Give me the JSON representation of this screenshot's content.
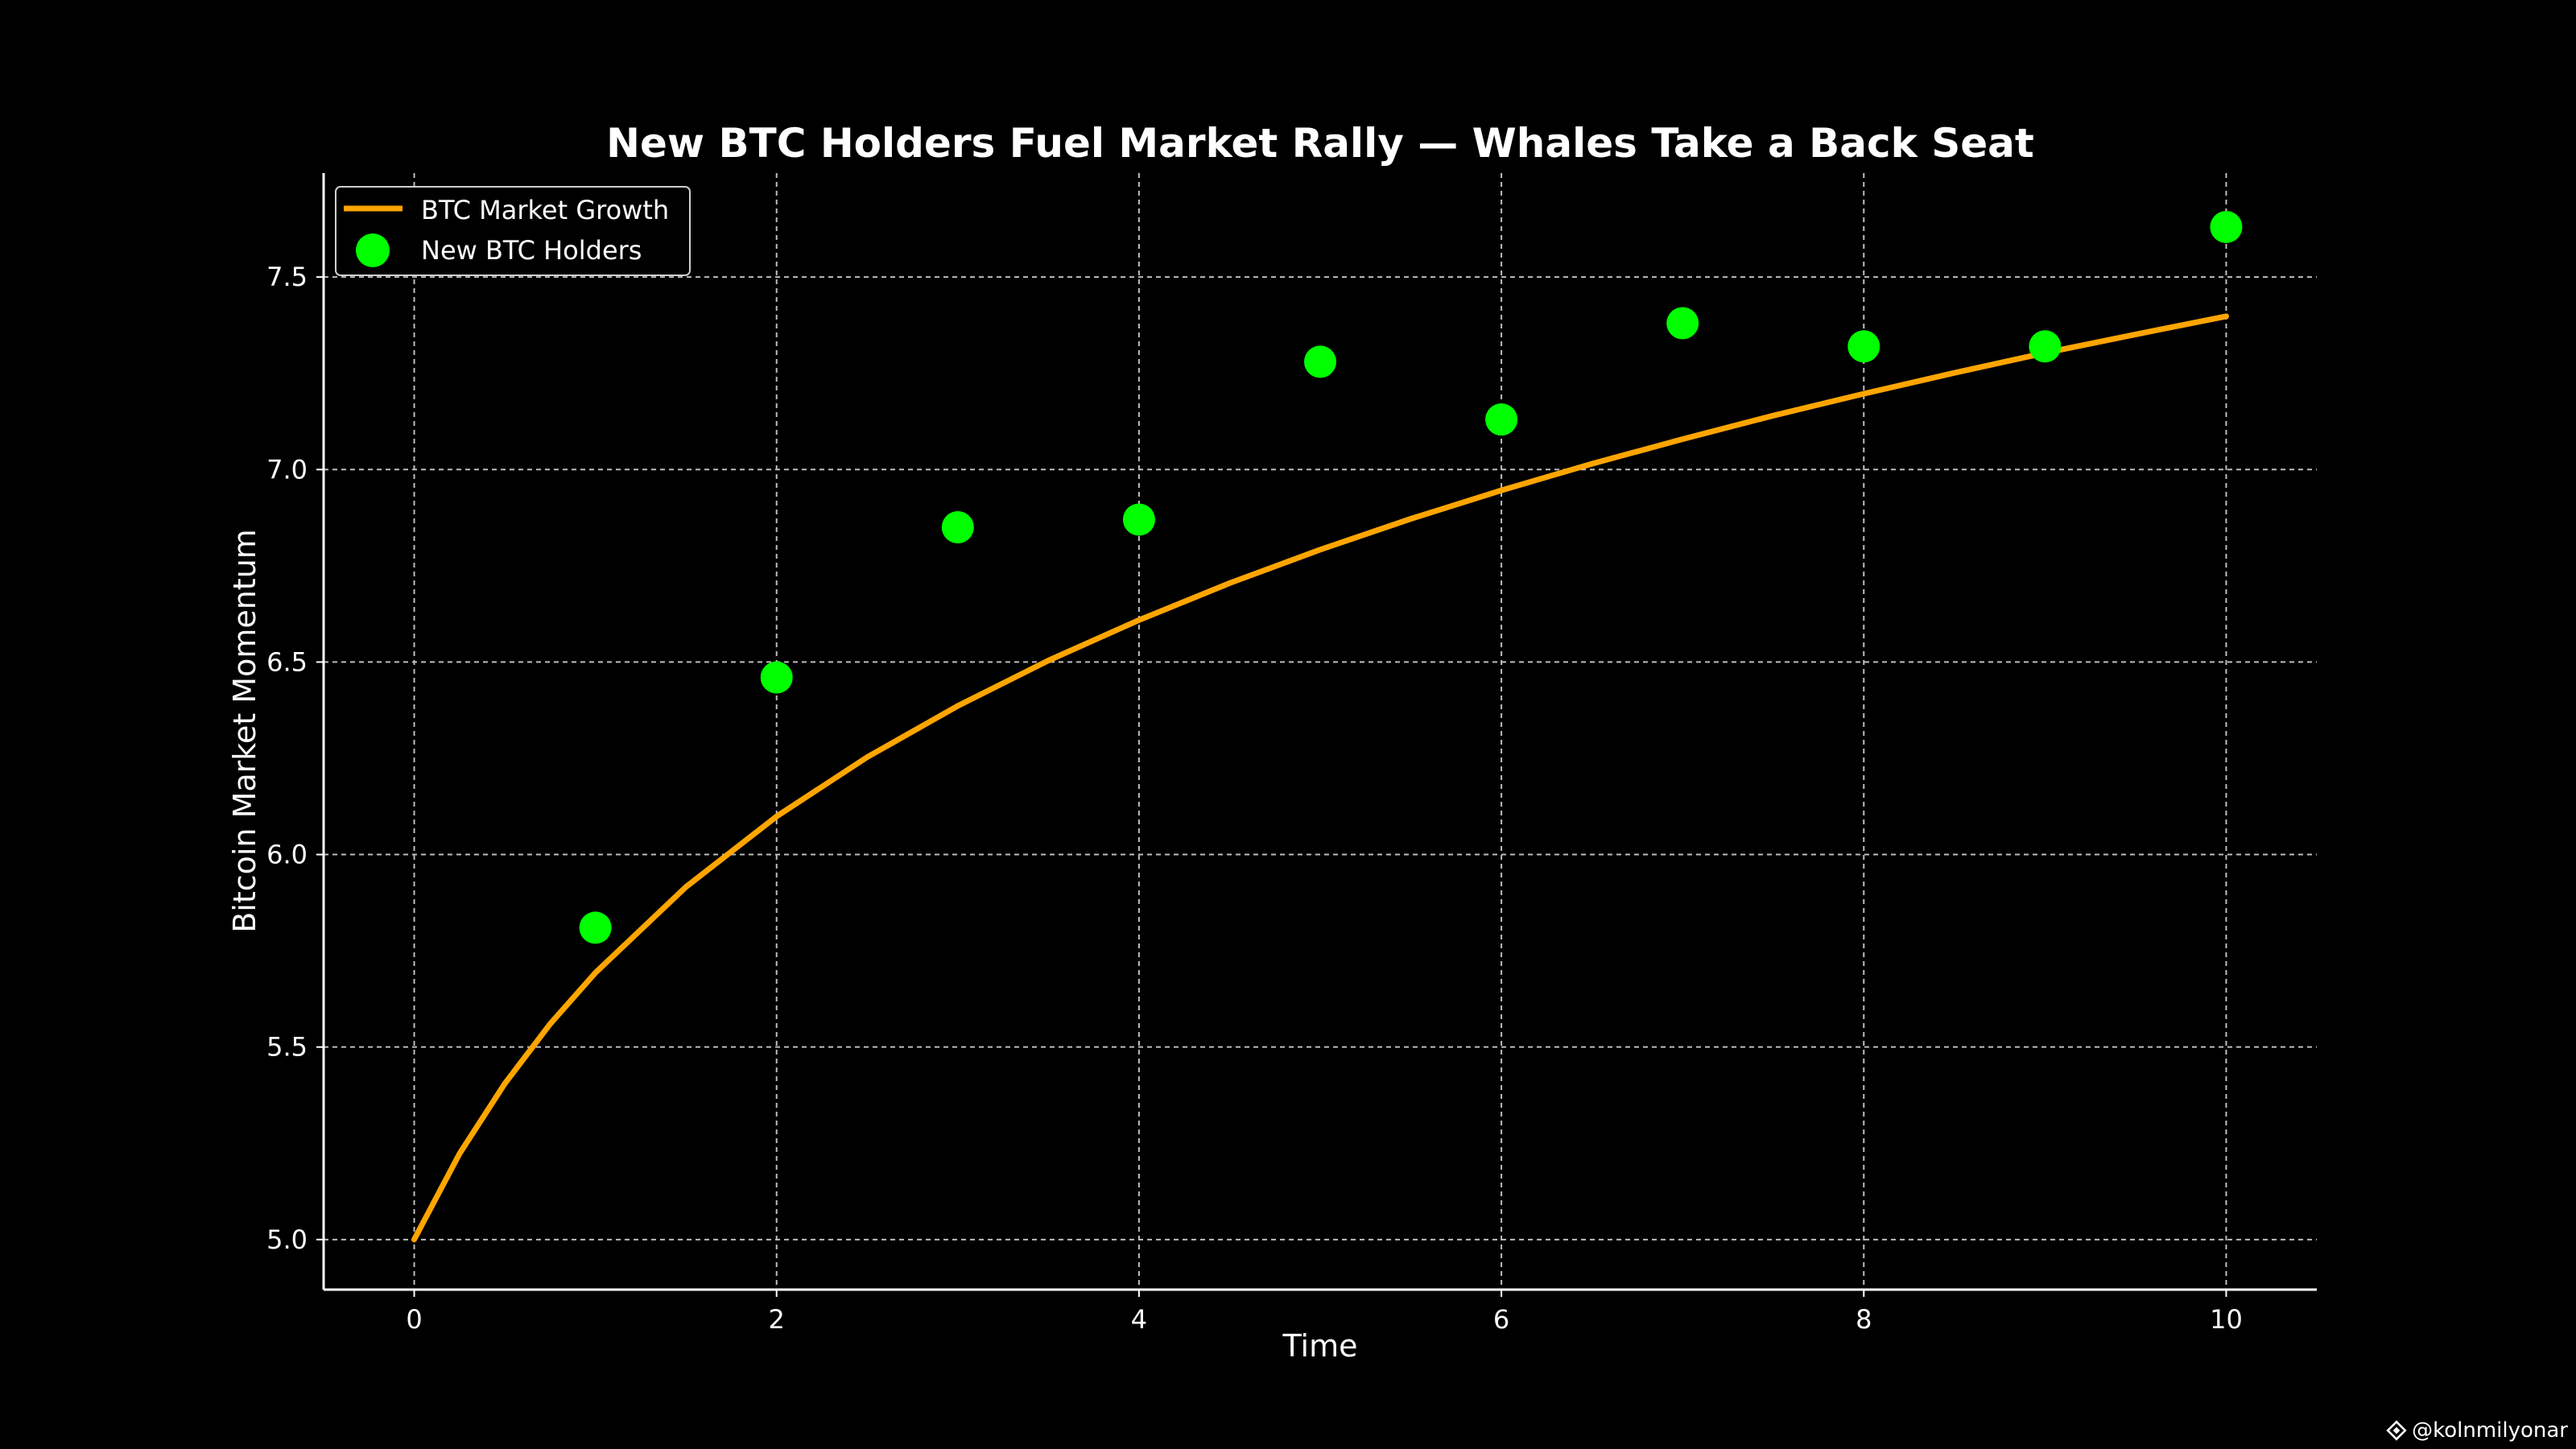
{
  "chart_data": {
    "type": "line",
    "title": "New BTC Holders Fuel Market Rally — Whales Take a Back Seat",
    "xlabel": "Time",
    "ylabel": "Bitcoin Market Momentum",
    "xlim": [
      -0.5,
      10.5
    ],
    "ylim": [
      4.87,
      7.77
    ],
    "xticks": [
      0,
      2,
      4,
      6,
      8,
      10
    ],
    "yticks": [
      5.0,
      5.5,
      6.0,
      6.5,
      7.0,
      7.5
    ],
    "grid": true,
    "legend_position": "upper-left",
    "series": [
      {
        "name": "BTC Market Growth",
        "kind": "line",
        "color": "#ffa500",
        "equation": "y = 5 + ln(1 + x)",
        "x": [
          0,
          0.25,
          0.5,
          0.75,
          1,
          1.5,
          2,
          2.5,
          3,
          3.5,
          4,
          4.5,
          5,
          5.5,
          6,
          6.5,
          7,
          7.5,
          8,
          8.5,
          9,
          9.5,
          10
        ],
        "y": [
          5.0,
          5.223,
          5.405,
          5.56,
          5.693,
          5.916,
          6.099,
          6.253,
          6.386,
          6.504,
          6.609,
          6.705,
          6.792,
          6.872,
          6.946,
          7.015,
          7.079,
          7.14,
          7.197,
          7.251,
          7.303,
          7.351,
          7.398
        ]
      },
      {
        "name": "New BTC Holders",
        "kind": "scatter",
        "color": "#00ff00",
        "x": [
          1,
          2,
          3,
          4,
          5,
          6,
          7,
          8,
          9,
          10
        ],
        "y": [
          5.81,
          6.46,
          6.85,
          6.87,
          7.28,
          7.13,
          7.38,
          7.32,
          7.32,
          7.63
        ]
      }
    ]
  },
  "watermark": {
    "text": "@kolnmilyonar",
    "icon": "binance-square-icon"
  }
}
